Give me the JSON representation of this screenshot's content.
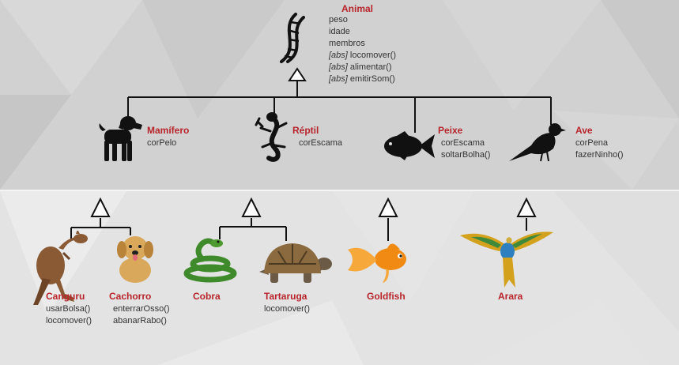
{
  "colors": {
    "title": "#b8242b",
    "text": "#333333",
    "line": "#111111"
  },
  "root": {
    "title": "Animal",
    "icon": "dna-icon",
    "attributes": [
      "peso",
      "idade",
      "membros"
    ],
    "methods": [
      {
        "tag": "[abs]",
        "name": "locomover()"
      },
      {
        "tag": "[abs]",
        "name": "alimentar()"
      },
      {
        "tag": "[abs]",
        "name": "emitirSom()"
      }
    ]
  },
  "level1": [
    {
      "title": "Mamífero",
      "icon": "dog-icon",
      "members": [
        "corPelo"
      ]
    },
    {
      "title": "Réptil",
      "icon": "lizard-icon",
      "members": [
        "corEscama"
      ]
    },
    {
      "title": "Peixe",
      "icon": "fish-icon",
      "members": [
        "corEscama",
        "soltarBolha()"
      ]
    },
    {
      "title": "Ave",
      "icon": "bird-icon",
      "members": [
        "corPena",
        "fazerNinho()"
      ]
    }
  ],
  "level2": [
    {
      "title": "Canguru",
      "icon": "kangaroo-icon",
      "members": [
        "usarBolsa()",
        "locomover()"
      ]
    },
    {
      "title": "Cachorro",
      "icon": "puppy-icon",
      "members": [
        "enterrarOsso()",
        "abanarRabo()"
      ]
    },
    {
      "title": "Cobra",
      "icon": "snake-icon",
      "members": []
    },
    {
      "title": "Tartaruga",
      "icon": "turtle-icon",
      "members": [
        "locomover()"
      ]
    },
    {
      "title": "Goldfish",
      "icon": "goldfish-icon",
      "members": []
    },
    {
      "title": "Arara",
      "icon": "macaw-icon",
      "members": []
    }
  ]
}
